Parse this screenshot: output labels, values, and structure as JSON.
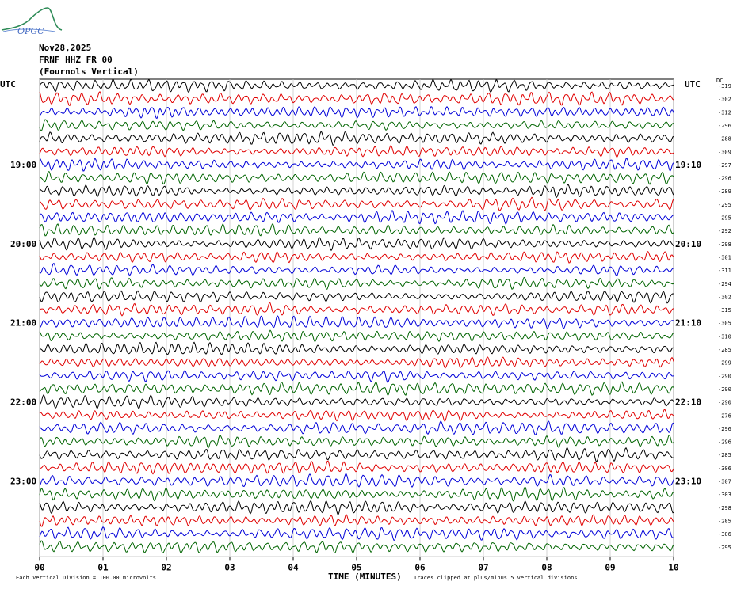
{
  "logo": {
    "text": "OPGC"
  },
  "header": {
    "date": "Nov28,2025",
    "station": "FRNF HHZ FR 00",
    "description": "(Fournols Vertical)"
  },
  "left_axis_label": "UTC",
  "right_axis_label": "UTC",
  "dc_label": "DC",
  "chart_data": {
    "type": "line",
    "title": "",
    "xlabel": "TIME (MINUTES)",
    "xlim": [
      0,
      10
    ],
    "x_ticks": [
      "00",
      "01",
      "02",
      "03",
      "04",
      "05",
      "06",
      "07",
      "08",
      "09",
      "10"
    ],
    "left_hour_labels": [
      {
        "row": 6,
        "text": "19:00"
      },
      {
        "row": 12,
        "text": "20:00"
      },
      {
        "row": 18,
        "text": "21:00"
      },
      {
        "row": 24,
        "text": "22:00"
      },
      {
        "row": 30,
        "text": "23:00"
      }
    ],
    "right_hour_labels": [
      {
        "row": 6,
        "text": "19:10"
      },
      {
        "row": 12,
        "text": "20:10"
      },
      {
        "row": 18,
        "text": "21:10"
      },
      {
        "row": 24,
        "text": "22:10"
      },
      {
        "row": 30,
        "text": "23:10"
      }
    ],
    "trace_colors": [
      "#000000",
      "#e00000",
      "#0000d8",
      "#006400"
    ],
    "dc_offsets": [
      -319,
      -302,
      -312,
      -296,
      -288,
      -309,
      -297,
      -296,
      -289,
      -295,
      -295,
      -292,
      -298,
      -301,
      -311,
      -294,
      -302,
      -315,
      -305,
      -310,
      -285,
      -299,
      -290,
      -290,
      -290,
      -276,
      -296,
      -296,
      -285,
      -306,
      -307,
      -303,
      -298,
      -285,
      -306,
      -295
    ],
    "footer_left": "Each Vertical Division =  100.00 microvolts",
    "footer_right": "Traces clipped at plus/minus 5 vertical divisions",
    "grid": true
  }
}
